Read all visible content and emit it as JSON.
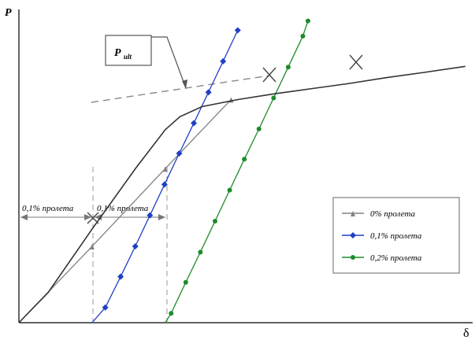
{
  "chart_data": {
    "type": "line",
    "ylabel": "P",
    "xlabel": "δ",
    "callout": {
      "main": "P",
      "subscript": "ult"
    },
    "offsets": [
      {
        "label": "0,1% пролета"
      },
      {
        "label": "0,1% пролета"
      }
    ],
    "series": [
      {
        "name": "0% пролета",
        "color": "#808080",
        "marker": "arrow",
        "x": [
          0,
          1.0,
          2.0,
          2.9
        ],
        "y": [
          0,
          1.06,
          2.14,
          3.1
        ]
      },
      {
        "name": "0,1% пролета",
        "color": "#1f3fc4",
        "marker": "diamond",
        "x": [
          1.0,
          1.18,
          1.39,
          1.59,
          1.79,
          1.99,
          2.19,
          2.39,
          2.59,
          2.79,
          2.99
        ],
        "y": [
          0,
          0.21,
          0.64,
          1.06,
          1.49,
          1.92,
          2.35,
          2.77,
          3.2,
          3.63,
          4.06
        ]
      },
      {
        "name": "0,2% пролета",
        "color": "#1e8a2c",
        "marker": "circle",
        "x": [
          2.0,
          2.08,
          2.28,
          2.48,
          2.68,
          2.88,
          3.08,
          3.28,
          3.48,
          3.68,
          3.88,
          3.95
        ],
        "y": [
          0,
          0.13,
          0.56,
          0.98,
          1.41,
          1.84,
          2.27,
          2.69,
          3.12,
          3.55,
          3.98,
          4.19
        ]
      },
      {
        "name": "",
        "color": "#333333",
        "marker": "none",
        "x": [
          0,
          0.4,
          1.0,
          1.6,
          2.0,
          2.2,
          2.5,
          3.0,
          3.5,
          4.0,
          4.5,
          5.0,
          5.5,
          6.1
        ],
        "y": [
          0,
          0.42,
          1.3,
          2.15,
          2.68,
          2.86,
          3.0,
          3.1,
          3.18,
          3.25,
          3.32,
          3.4,
          3.47,
          3.56
        ]
      }
    ],
    "xlim": [
      0,
      6.2
    ],
    "ylim": [
      0,
      4.35
    ],
    "grid": false,
    "legend": "right"
  }
}
